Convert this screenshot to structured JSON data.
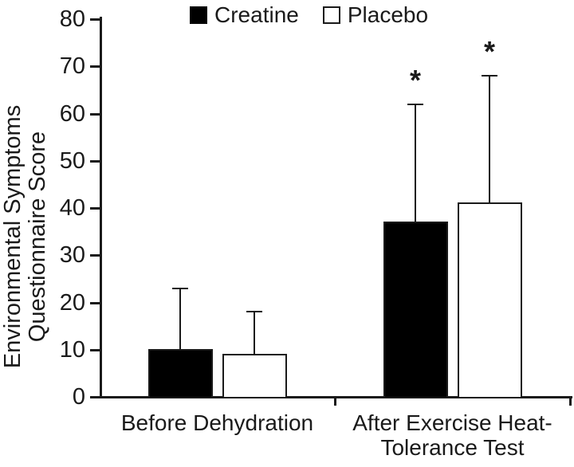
{
  "figure": {
    "background": "#ffffff",
    "ink_color": "#1a1a1a"
  },
  "chart_data": {
    "type": "bar",
    "title": "",
    "xlabel": "",
    "ylabel": "Environmental Symptoms Questionnaire Score",
    "ylabel_lines": [
      "Environmental Symptoms",
      "Questionnaire Score"
    ],
    "ylim": [
      0,
      80
    ],
    "yticks": [
      0,
      10,
      20,
      30,
      40,
      50,
      60,
      70,
      80
    ],
    "grid": false,
    "legend_position": "top",
    "categories": [
      "Before Dehydration",
      "After Exercise Heat-\nTolerance Test"
    ],
    "series": [
      {
        "name": "Creatine",
        "fill": "#000000",
        "border": "#1a1a1a",
        "values": [
          10,
          37
        ],
        "error_upper": [
          13,
          25
        ],
        "error_bar_tops": [
          23,
          62
        ],
        "significance": [
          "",
          "*"
        ]
      },
      {
        "name": "Placebo",
        "fill": "#ffffff",
        "border": "#1a1a1a",
        "values": [
          9,
          41
        ],
        "error_upper": [
          9,
          27
        ],
        "error_bar_tops": [
          18,
          68
        ],
        "significance": [
          "",
          "*"
        ]
      }
    ]
  }
}
